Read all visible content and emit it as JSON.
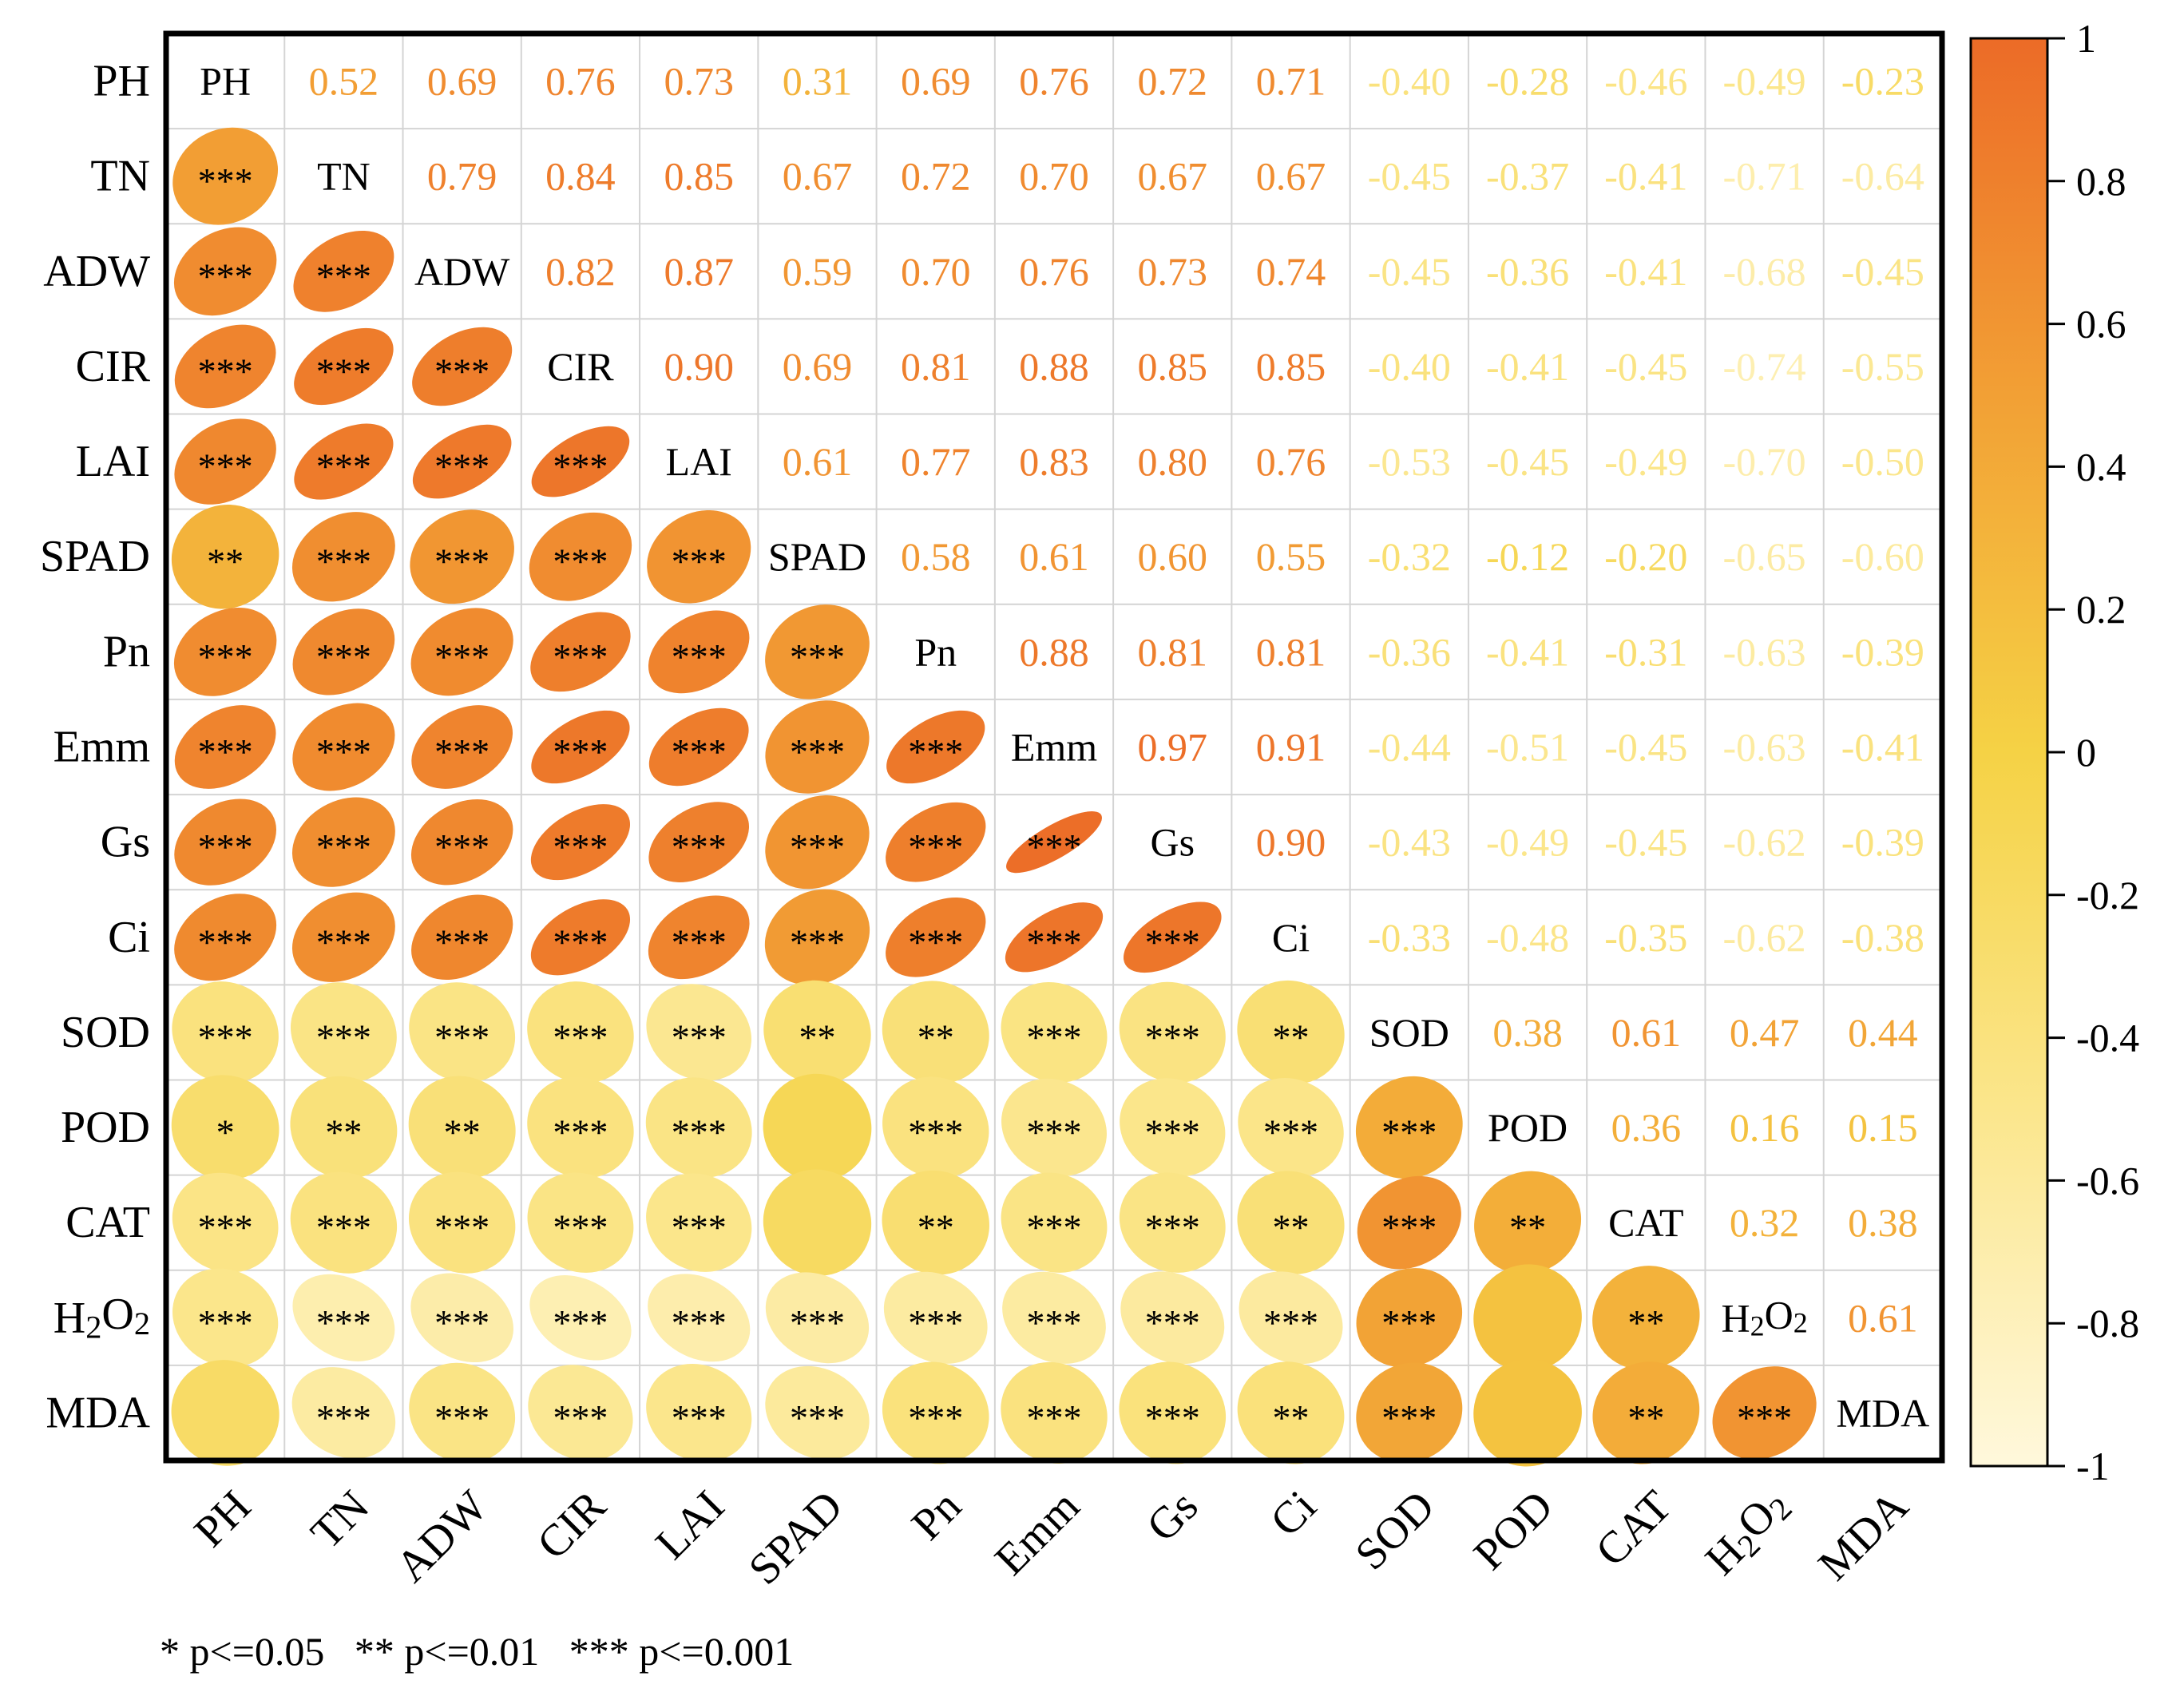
{
  "chart_data": {
    "type": "heatmap",
    "title": "",
    "xlabel": "",
    "ylabel": "",
    "variables": [
      "PH",
      "TN",
      "ADW",
      "CIR",
      "LAI",
      "SPAD",
      "Pn",
      "Emm",
      "Gs",
      "Ci",
      "SOD",
      "POD",
      "CAT",
      "H2O2",
      "MDA"
    ],
    "upper_triangle": "correlation coefficient values",
    "lower_triangle": "ellipses with significance marks",
    "matrix": [
      [
        1,
        0.52,
        0.69,
        0.76,
        0.73,
        0.31,
        0.69,
        0.76,
        0.72,
        0.71,
        -0.4,
        -0.28,
        -0.46,
        -0.49,
        -0.23
      ],
      [
        0.52,
        1,
        0.79,
        0.84,
        0.85,
        0.67,
        0.72,
        0.7,
        0.67,
        0.67,
        -0.45,
        -0.37,
        -0.41,
        -0.71,
        -0.64
      ],
      [
        0.69,
        0.79,
        1,
        0.82,
        0.87,
        0.59,
        0.7,
        0.76,
        0.73,
        0.74,
        -0.45,
        -0.36,
        -0.41,
        -0.68,
        -0.45
      ],
      [
        0.76,
        0.84,
        0.82,
        1,
        0.9,
        0.69,
        0.81,
        0.88,
        0.85,
        0.85,
        -0.4,
        -0.41,
        -0.45,
        -0.74,
        -0.55
      ],
      [
        0.73,
        0.85,
        0.87,
        0.9,
        1,
        0.61,
        0.77,
        0.83,
        0.8,
        0.76,
        -0.53,
        -0.45,
        -0.49,
        -0.7,
        -0.5
      ],
      [
        0.31,
        0.67,
        0.59,
        0.69,
        0.61,
        1,
        0.58,
        0.61,
        0.6,
        0.55,
        -0.32,
        -0.12,
        -0.2,
        -0.65,
        -0.6
      ],
      [
        0.69,
        0.72,
        0.7,
        0.81,
        0.77,
        0.58,
        1,
        0.88,
        0.81,
        0.81,
        -0.36,
        -0.41,
        -0.31,
        -0.63,
        -0.39
      ],
      [
        0.76,
        0.7,
        0.76,
        0.88,
        0.83,
        0.61,
        0.88,
        1,
        0.97,
        0.91,
        -0.44,
        -0.51,
        -0.45,
        -0.63,
        -0.41
      ],
      [
        0.72,
        0.67,
        0.73,
        0.85,
        0.8,
        0.6,
        0.81,
        0.97,
        1,
        0.9,
        -0.43,
        -0.49,
        -0.45,
        -0.62,
        -0.39
      ],
      [
        0.71,
        0.67,
        0.74,
        0.85,
        0.76,
        0.55,
        0.81,
        0.91,
        0.9,
        1,
        -0.33,
        -0.48,
        -0.35,
        -0.62,
        -0.38
      ],
      [
        -0.4,
        -0.45,
        -0.45,
        -0.4,
        -0.53,
        -0.32,
        -0.36,
        -0.44,
        -0.43,
        -0.33,
        1,
        0.38,
        0.61,
        0.47,
        0.44
      ],
      [
        -0.28,
        -0.37,
        -0.36,
        -0.41,
        -0.45,
        -0.12,
        -0.41,
        -0.51,
        -0.49,
        -0.48,
        0.38,
        1,
        0.36,
        0.16,
        0.15
      ],
      [
        -0.46,
        -0.41,
        -0.41,
        -0.45,
        -0.49,
        -0.2,
        -0.31,
        -0.45,
        -0.45,
        -0.35,
        0.61,
        0.36,
        1,
        0.32,
        0.38
      ],
      [
        -0.49,
        -0.71,
        -0.68,
        -0.74,
        -0.7,
        -0.65,
        -0.63,
        -0.63,
        -0.62,
        -0.62,
        0.47,
        0.16,
        0.32,
        1,
        0.61
      ],
      [
        -0.23,
        -0.64,
        -0.45,
        -0.55,
        -0.5,
        -0.6,
        -0.39,
        -0.41,
        -0.39,
        -0.38,
        0.44,
        0.15,
        0.38,
        0.61,
        1
      ]
    ],
    "significance_lower": [
      [
        "",
        "",
        "",
        "",
        "",
        "",
        "",
        "",
        "",
        "",
        "",
        "",
        "",
        "",
        ""
      ],
      [
        "***",
        "",
        "",
        "",
        "",
        "",
        "",
        "",
        "",
        "",
        "",
        "",
        "",
        "",
        ""
      ],
      [
        "***",
        "***",
        "",
        "",
        "",
        "",
        "",
        "",
        "",
        "",
        "",
        "",
        "",
        "",
        ""
      ],
      [
        "***",
        "***",
        "***",
        "",
        "",
        "",
        "",
        "",
        "",
        "",
        "",
        "",
        "",
        "",
        ""
      ],
      [
        "***",
        "***",
        "***",
        "***",
        "",
        "",
        "",
        "",
        "",
        "",
        "",
        "",
        "",
        "",
        ""
      ],
      [
        "**",
        "***",
        "***",
        "***",
        "***",
        "",
        "",
        "",
        "",
        "",
        "",
        "",
        "",
        "",
        ""
      ],
      [
        "***",
        "***",
        "***",
        "***",
        "***",
        "***",
        "",
        "",
        "",
        "",
        "",
        "",
        "",
        "",
        ""
      ],
      [
        "***",
        "***",
        "***",
        "***",
        "***",
        "***",
        "***",
        "",
        "",
        "",
        "",
        "",
        "",
        "",
        ""
      ],
      [
        "***",
        "***",
        "***",
        "***",
        "***",
        "***",
        "***",
        "***",
        "",
        "",
        "",
        "",
        "",
        "",
        ""
      ],
      [
        "***",
        "***",
        "***",
        "***",
        "***",
        "***",
        "***",
        "***",
        "***",
        "",
        "",
        "",
        "",
        "",
        ""
      ],
      [
        "***",
        "***",
        "***",
        "***",
        "***",
        "**",
        "**",
        "***",
        "***",
        "**",
        "",
        "",
        "",
        "",
        ""
      ],
      [
        "*",
        "**",
        "**",
        "***",
        "***",
        "",
        "***",
        "***",
        "***",
        "***",
        "***",
        "",
        "",
        "",
        ""
      ],
      [
        "***",
        "***",
        "***",
        "***",
        "***",
        "",
        "**",
        "***",
        "***",
        "**",
        "***",
        "**",
        "",
        "",
        ""
      ],
      [
        "***",
        "***",
        "***",
        "***",
        "***",
        "***",
        "***",
        "***",
        "***",
        "***",
        "***",
        "",
        "**",
        "",
        ""
      ],
      [
        "",
        "***",
        "***",
        "***",
        "***",
        "***",
        "***",
        "***",
        "***",
        "**",
        "***",
        "",
        "**",
        "***",
        ""
      ]
    ],
    "colorbar": {
      "range": [
        -1,
        1
      ],
      "ticks": [
        "1",
        "0.8",
        "0.6",
        "0.4",
        "0.2",
        "0",
        "-0.2",
        "-0.4",
        "-0.6",
        "-0.8",
        "-1"
      ],
      "colors": {
        "low": "#FFF6D8",
        "mid": "#F5D245",
        "high": "#EC6B27"
      }
    },
    "legend_note": "* p<=0.05   ** p<=0.01   *** p<=0.001"
  }
}
